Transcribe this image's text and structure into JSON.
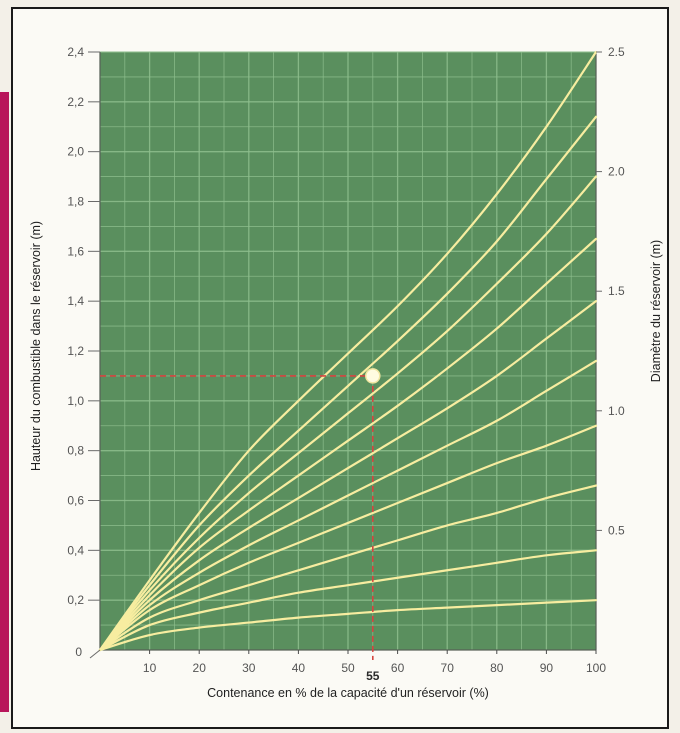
{
  "chart_data": {
    "type": "line",
    "xlabel": "Contenance en % de la capacité d'un réservoir (%)",
    "ylabel_left": "Hauteur du combustible dans le réservoir (m)",
    "ylabel_right": "Diamètre du réservoir (m)",
    "xlim": [
      0,
      100
    ],
    "ylim_left": [
      0,
      2.4
    ],
    "ylim_right": [
      0,
      2.5
    ],
    "x_ticks": [
      "10",
      "20",
      "30",
      "40",
      "50",
      "60",
      "70",
      "80",
      "90",
      "100"
    ],
    "y_left_ticks": [
      "0,2",
      "0,4",
      "0,6",
      "0,8",
      "1,0",
      "1,2",
      "1,4",
      "1,6",
      "1,8",
      "2,0",
      "2,2",
      "2,4"
    ],
    "y_right_ticks": [
      "0.5",
      "1.0",
      "1.5",
      "2.0",
      "2.5"
    ],
    "origin_label": "0",
    "grid": true,
    "series": [
      {
        "x": [
          0,
          10,
          20,
          30,
          40,
          50,
          60,
          70,
          80,
          90,
          100
        ],
        "values": [
          0,
          0.06,
          0.09,
          0.11,
          0.13,
          0.145,
          0.16,
          0.17,
          0.18,
          0.19,
          0.2
        ]
      },
      {
        "x": [
          0,
          10,
          20,
          30,
          40,
          50,
          60,
          70,
          80,
          90,
          100
        ],
        "values": [
          0,
          0.1,
          0.15,
          0.19,
          0.23,
          0.26,
          0.29,
          0.32,
          0.35,
          0.38,
          0.4
        ]
      },
      {
        "x": [
          0,
          10,
          20,
          30,
          40,
          50,
          60,
          70,
          80,
          90,
          100
        ],
        "values": [
          0,
          0.13,
          0.2,
          0.26,
          0.32,
          0.38,
          0.44,
          0.5,
          0.55,
          0.61,
          0.66
        ]
      },
      {
        "x": [
          0,
          10,
          20,
          30,
          40,
          50,
          60,
          70,
          80,
          90,
          100
        ],
        "values": [
          0,
          0.16,
          0.26,
          0.35,
          0.43,
          0.51,
          0.59,
          0.67,
          0.75,
          0.82,
          0.9
        ]
      },
      {
        "x": [
          0,
          10,
          20,
          30,
          40,
          50,
          60,
          70,
          80,
          90,
          100
        ],
        "values": [
          0,
          0.18,
          0.31,
          0.42,
          0.52,
          0.62,
          0.72,
          0.82,
          0.92,
          1.04,
          1.16
        ]
      },
      {
        "x": [
          0,
          10,
          20,
          30,
          40,
          50,
          60,
          70,
          80,
          90,
          100
        ],
        "values": [
          0,
          0.2,
          0.36,
          0.49,
          0.61,
          0.73,
          0.85,
          0.97,
          1.1,
          1.25,
          1.4
        ]
      },
      {
        "x": [
          0,
          10,
          20,
          30,
          40,
          50,
          60,
          70,
          80,
          90,
          100
        ],
        "values": [
          0,
          0.22,
          0.41,
          0.56,
          0.7,
          0.84,
          0.98,
          1.13,
          1.29,
          1.47,
          1.65
        ]
      },
      {
        "x": [
          0,
          10,
          20,
          30,
          40,
          50,
          60,
          70,
          80,
          90,
          100
        ],
        "values": [
          0,
          0.24,
          0.45,
          0.63,
          0.79,
          0.95,
          1.11,
          1.28,
          1.47,
          1.67,
          1.9
        ]
      },
      {
        "x": [
          0,
          10,
          20,
          30,
          40,
          50,
          60,
          70,
          80,
          90,
          100
        ],
        "values": [
          0,
          0.26,
          0.5,
          0.7,
          0.88,
          1.06,
          1.24,
          1.43,
          1.64,
          1.89,
          2.14
        ]
      },
      {
        "x": [
          0,
          10,
          20,
          30,
          40,
          50,
          60,
          70,
          80,
          90,
          100
        ],
        "values": [
          0,
          0.28,
          0.55,
          0.8,
          1.0,
          1.19,
          1.38,
          1.59,
          1.83,
          2.1,
          2.4
        ]
      }
    ],
    "annotation": {
      "x": 55,
      "y": 1.1,
      "label": "55"
    },
    "colors": {
      "plot_background": "#5a8f5e",
      "grid": "#8ebf8e",
      "curve": "#f7eda0",
      "guide": "#d64540",
      "marker": "#fffbe0",
      "accent_bar": "#b8155a"
    }
  }
}
